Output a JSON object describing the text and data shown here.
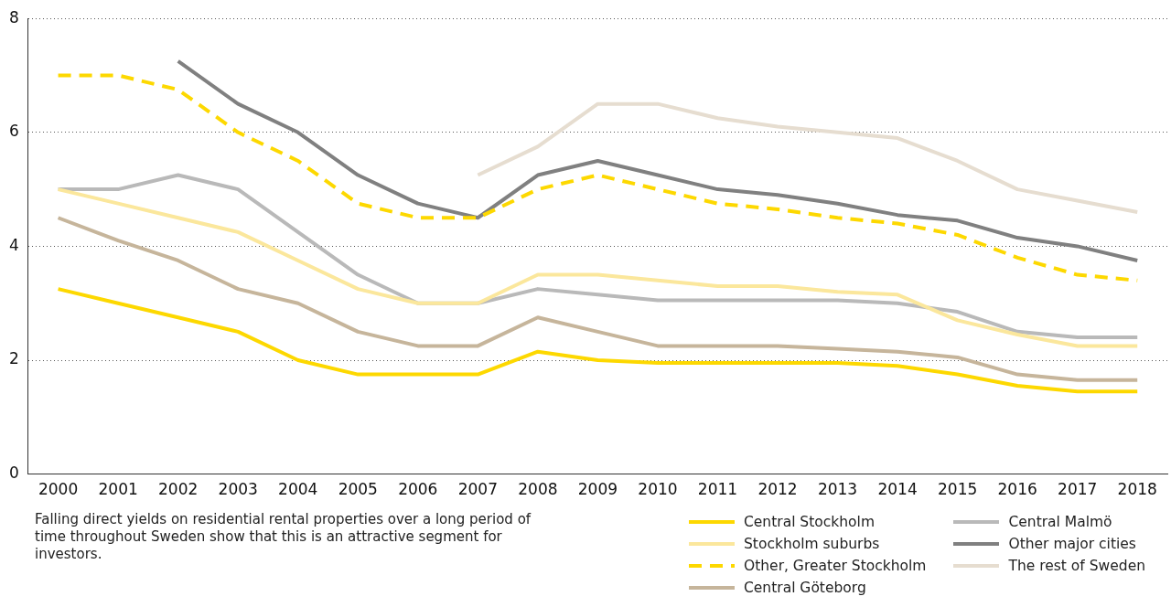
{
  "chart_data": {
    "type": "line",
    "categories": [
      "2000",
      "2001",
      "2002",
      "2003",
      "2004",
      "2005",
      "2006",
      "2007",
      "2008",
      "2009",
      "2010",
      "2011",
      "2012",
      "2013",
      "2014",
      "2015",
      "2016",
      "2017",
      "2018"
    ],
    "series": [
      {
        "name": "Central Stockholm",
        "color": "#fdd800",
        "values": [
          3.25,
          3.0,
          2.75,
          2.5,
          2.0,
          1.75,
          1.75,
          1.75,
          2.15,
          2.0,
          1.95,
          1.95,
          1.95,
          1.95,
          1.9,
          1.75,
          1.55,
          1.45,
          1.45
        ]
      },
      {
        "name": "Stockholm suburbs",
        "color": "#fbe79c",
        "values": [
          5.0,
          4.75,
          4.5,
          4.25,
          3.75,
          3.25,
          3.0,
          3.0,
          3.5,
          3.5,
          3.4,
          3.3,
          3.3,
          3.2,
          3.15,
          2.7,
          2.45,
          2.25,
          2.25
        ]
      },
      {
        "name": "Other, Greater Stockholm",
        "color": "#fdd800",
        "line_style": "dashed",
        "values": [
          7.0,
          7.0,
          6.75,
          6.0,
          5.5,
          4.75,
          4.5,
          4.5,
          5.0,
          5.25,
          5.0,
          4.75,
          4.65,
          4.5,
          4.4,
          4.2,
          3.8,
          3.5,
          3.4
        ]
      },
      {
        "name": "Central Göteborg",
        "color": "#c6b59b",
        "values": [
          4.5,
          4.1,
          3.75,
          3.25,
          3.0,
          2.5,
          2.25,
          2.25,
          2.75,
          2.5,
          2.25,
          2.25,
          2.25,
          2.2,
          2.15,
          2.05,
          1.75,
          1.65,
          1.65
        ]
      },
      {
        "name": "Central Malmö",
        "color": "#b9b9b9",
        "values": [
          5.0,
          5.0,
          5.25,
          5.0,
          4.25,
          3.5,
          3.0,
          3.0,
          3.25,
          3.15,
          3.05,
          3.05,
          3.05,
          3.05,
          3.0,
          2.85,
          2.5,
          2.4,
          2.4
        ]
      },
      {
        "name": "Other major cities",
        "color": "#808080",
        "values": [
          null,
          null,
          7.25,
          6.5,
          6.0,
          5.25,
          4.75,
          4.5,
          5.25,
          5.5,
          5.25,
          5.0,
          4.9,
          4.75,
          4.55,
          4.45,
          4.15,
          4.0,
          3.75
        ]
      },
      {
        "name": "The rest of Sweden",
        "color": "#e6ddd0",
        "values": [
          null,
          null,
          null,
          null,
          null,
          null,
          null,
          5.25,
          5.75,
          6.5,
          6.5,
          6.25,
          6.1,
          6.0,
          5.9,
          5.5,
          5.0,
          4.8,
          4.6
        ]
      }
    ],
    "ylim": [
      0,
      8
    ],
    "yticks": [
      0,
      2,
      4,
      6,
      8
    ],
    "grid": "y",
    "legend": "bottom",
    "line_style": "solid",
    "marker": "none",
    "annotations": [
      "Falling direct yields on residential rental properties over a long period of time throughout Sweden show that this is an attractive segment for investors."
    ]
  }
}
